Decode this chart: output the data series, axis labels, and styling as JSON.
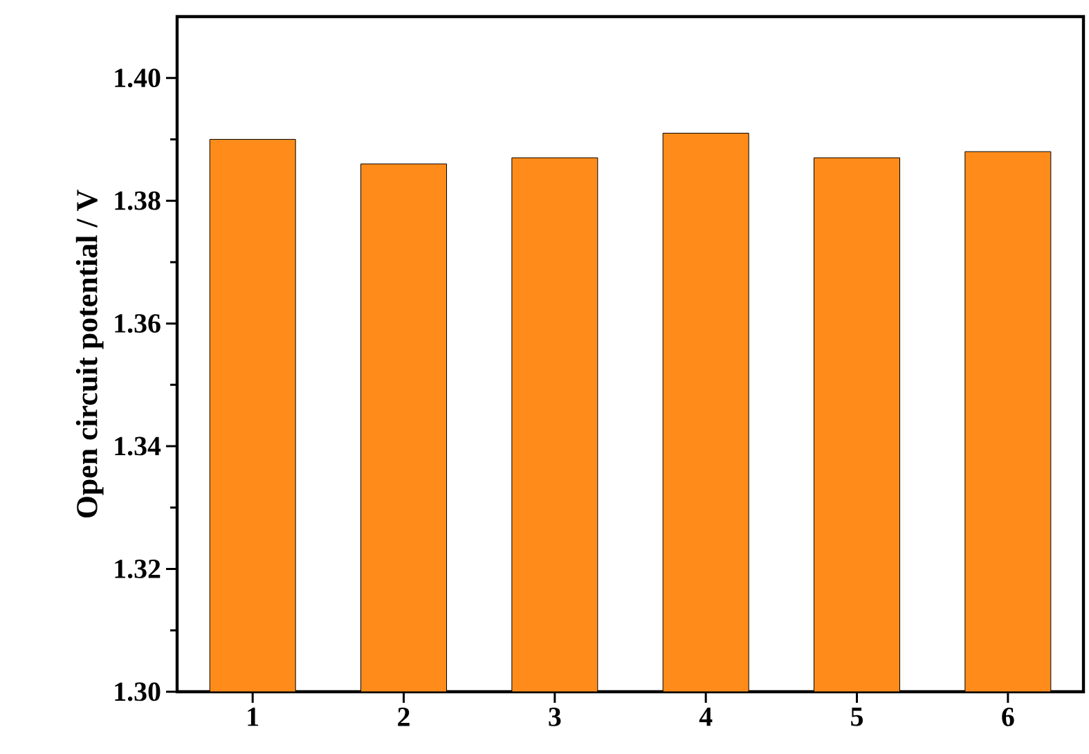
{
  "chart_data": {
    "type": "bar",
    "ylabel": "Open circuit potential / V",
    "categories": [
      "1",
      "2",
      "3",
      "4",
      "5",
      "6"
    ],
    "values": [
      1.39,
      1.386,
      1.387,
      1.391,
      1.387,
      1.388
    ],
    "color": "#ff8c1a",
    "ylim": [
      1.3,
      1.41
    ],
    "yticks": [
      {
        "value": 1.3,
        "label": "1.30"
      },
      {
        "value": 1.32,
        "label": "1.32"
      },
      {
        "value": 1.34,
        "label": "1.34"
      },
      {
        "value": 1.36,
        "label": "1.36"
      },
      {
        "value": 1.38,
        "label": "1.38"
      },
      {
        "value": 1.4,
        "label": "1.40"
      }
    ]
  }
}
